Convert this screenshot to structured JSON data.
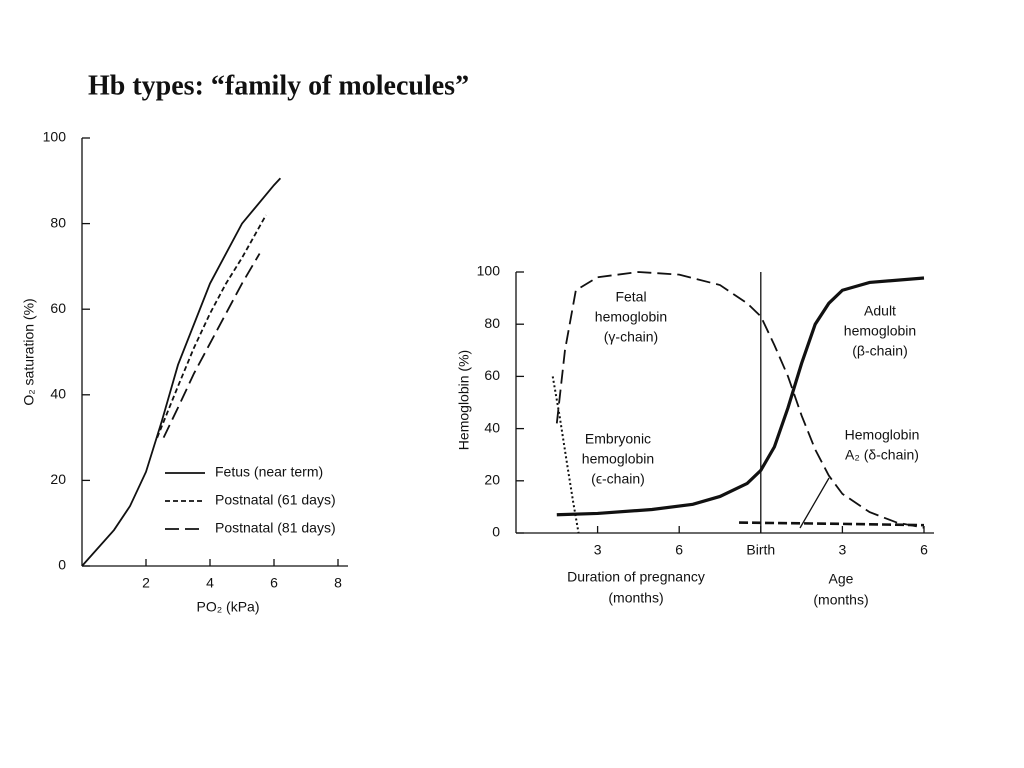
{
  "title": "Hb types: “family of molecules”",
  "chart_data": [
    {
      "type": "line",
      "x_label": "PO₂ (kPa)",
      "y_label": "O₂ saturation (%)",
      "xlim": [
        0,
        8
      ],
      "xticks": [
        2,
        4,
        6,
        8
      ],
      "ylim": [
        0,
        100
      ],
      "yticks": [
        0,
        20,
        40,
        60,
        80,
        100
      ],
      "legend": "lower right",
      "series": [
        {
          "name": "Fetus (near term)",
          "color": "#111111",
          "dash": "solid",
          "width": 1.8,
          "x": [
            0,
            1,
            1.5,
            2,
            2.5,
            3,
            4,
            5,
            6,
            6.2
          ],
          "values": [
            0,
            8.4,
            14,
            22,
            34,
            47,
            66,
            80,
            89,
            90.6
          ]
        },
        {
          "name": "Postnatal (61 days)",
          "color": "#111111",
          "dash": "dashed",
          "width": 1.8,
          "x": [
            2.35,
            3,
            3.5,
            4,
            4.5,
            5,
            5.75
          ],
          "values": [
            30,
            42,
            51,
            59,
            66,
            72,
            82
          ]
        },
        {
          "name": "Postnatal (81 days)",
          "color": "#111111",
          "dash": "long-dash",
          "width": 1.8,
          "x": [
            2.55,
            3,
            3.5,
            4,
            4.5,
            5,
            5.55
          ],
          "values": [
            30,
            37,
            45,
            52,
            59,
            66,
            73
          ]
        }
      ]
    },
    {
      "type": "line",
      "y_label": "Hemoglobin (%)",
      "xlim": [
        0,
        15
      ],
      "xticks": [
        3,
        6,
        {
          "value": 9,
          "label": "Birth"
        },
        {
          "value": 12,
          "label": "3"
        },
        {
          "value": 15,
          "label": "6"
        }
      ],
      "ylim": [
        0,
        100
      ],
      "yticks": [
        0,
        20,
        40,
        60,
        80,
        100
      ],
      "x_groups": [
        [
          "Duration of pregnancy",
          "(months)"
        ],
        [
          "Age",
          "(months)"
        ]
      ],
      "series": [
        {
          "label": [
            "Fetal",
            "hemoglobin",
            "(γ-chain)"
          ],
          "color": "#111111",
          "dash": "long-dash",
          "width": 1.8,
          "x": [
            1.5,
            1.8,
            2.2,
            3,
            4.5,
            6,
            7.5,
            8.5,
            9,
            9.5,
            10,
            10.5,
            11,
            11.5,
            12,
            13,
            14,
            15
          ],
          "values": [
            42,
            70,
            93,
            98,
            100,
            99,
            95,
            88,
            83,
            72,
            60,
            45,
            32,
            22,
            15,
            8,
            4,
            2
          ]
        },
        {
          "label": [
            "Embryonic",
            "hemoglobin",
            "(ϵ-chain)"
          ],
          "color": "#111111",
          "dash": "dotted",
          "width": 2,
          "x": [
            1.35,
            1.6,
            1.9,
            2.1,
            2.3
          ],
          "values": [
            60,
            45,
            25,
            12,
            0
          ]
        },
        {
          "label": [
            "Adult",
            "hemoglobin",
            "(β-chain)"
          ],
          "color": "#111111",
          "dash": "solid",
          "width": 3.2,
          "x": [
            1.5,
            3,
            5,
            6.5,
            7.5,
            8.5,
            9,
            9.5,
            10,
            10.5,
            11,
            11.5,
            12,
            13,
            15
          ],
          "values": [
            7,
            7.5,
            9,
            11,
            14,
            19,
            24,
            33,
            48,
            65,
            80,
            88,
            93,
            96,
            97.7
          ]
        },
        {
          "label": [
            "Hemoglobin",
            "A₂ (δ-chain)"
          ],
          "color": "#111111",
          "dash": "heavy-dash",
          "width": 2.6,
          "x": [
            8.2,
            12,
            15
          ],
          "values": [
            4,
            3.5,
            3
          ]
        }
      ]
    }
  ]
}
